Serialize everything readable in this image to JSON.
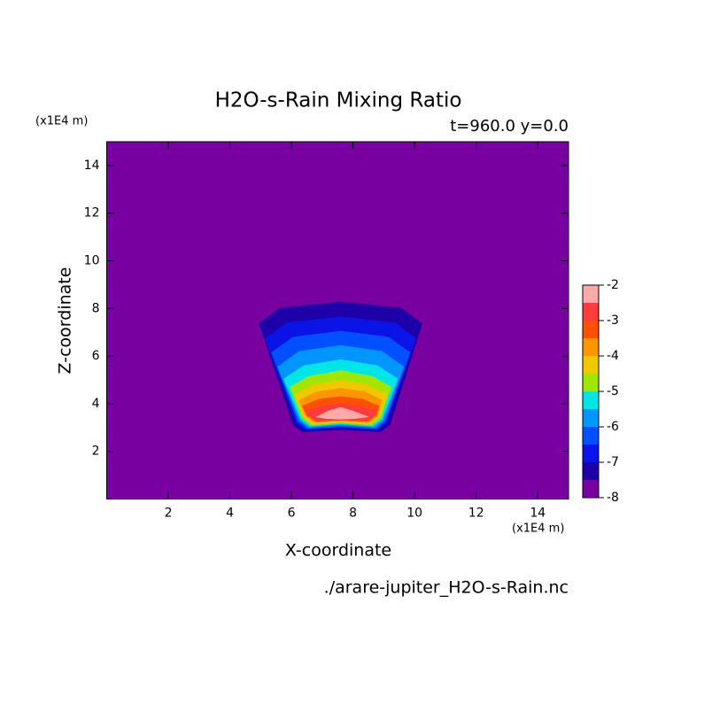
{
  "chart_data": {
    "type": "contour",
    "title": "H2O-s-Rain Mixing Ratio",
    "subtitle": "t=960.0 y=0.0",
    "x_label": "X-coordinate",
    "y_label": "Z-coordinate",
    "x_unit": "(x1E4 m)",
    "y_unit": "(x1E4 m)",
    "source": "./arare-jupiter_H2O-s-Rain.nc",
    "xlim": [
      0,
      15
    ],
    "ylim": [
      0,
      15
    ],
    "xticks": [
      2,
      4,
      6,
      8,
      10,
      12,
      14
    ],
    "yticks": [
      2,
      4,
      6,
      8,
      10,
      12,
      14
    ],
    "colorbar": {
      "levels": [
        -8,
        -7.5,
        -7,
        -6.5,
        -6,
        -5.5,
        -5,
        -4.5,
        -4,
        -3.5,
        -3,
        -2.5,
        -2
      ],
      "colors": [
        "#7800a0",
        "#1e00a8",
        "#0a14e6",
        "#0050ff",
        "#0096ff",
        "#00e6e6",
        "#a0e600",
        "#f0c800",
        "#ff9600",
        "#ff5000",
        "#ff3c3c",
        "#ffaaaa"
      ],
      "ticks": [
        -8,
        -7,
        -6,
        -5,
        -4,
        -3,
        -2
      ]
    },
    "contours": [
      {
        "level": -7.5,
        "x": [
          4.95,
          5.65,
          7.6,
          9.55,
          10.25,
          9.2,
          8.9,
          7.6,
          6.35,
          6.05
        ],
        "y": [
          7.38,
          8.03,
          8.28,
          8.03,
          7.38,
          3.12,
          2.82,
          2.92,
          2.82,
          3.12
        ]
      },
      {
        "level": -7,
        "x": [
          5.15,
          5.85,
          7.6,
          9.35,
          10.05,
          9.1,
          8.8,
          7.6,
          6.45,
          6.15
        ],
        "y": [
          6.75,
          7.4,
          7.65,
          7.4,
          6.75,
          3.2,
          2.9,
          3.0,
          2.9,
          3.2
        ]
      },
      {
        "level": -6.5,
        "x": [
          5.35,
          6.05,
          7.6,
          9.15,
          9.85,
          9.05,
          8.75,
          7.6,
          6.5,
          6.2
        ],
        "y": [
          6.15,
          6.8,
          7.05,
          6.8,
          6.15,
          3.25,
          2.95,
          3.05,
          2.95,
          3.25
        ]
      },
      {
        "level": -6,
        "x": [
          5.55,
          6.25,
          7.6,
          8.95,
          9.65,
          9.0,
          8.7,
          7.6,
          6.55,
          6.25
        ],
        "y": [
          5.55,
          6.2,
          6.45,
          6.2,
          5.55,
          3.3,
          3.0,
          3.1,
          3.0,
          3.3
        ]
      },
      {
        "level": -5.5,
        "x": [
          5.75,
          6.4,
          7.6,
          8.8,
          9.45,
          8.95,
          8.65,
          7.6,
          6.6,
          6.3
        ],
        "y": [
          5.05,
          5.6,
          5.85,
          5.6,
          5.05,
          3.35,
          3.05,
          3.15,
          3.05,
          3.35
        ]
      },
      {
        "level": -5,
        "x": [
          5.95,
          6.55,
          7.6,
          8.65,
          9.25,
          8.9,
          8.6,
          7.6,
          6.65,
          6.35
        ],
        "y": [
          4.7,
          5.15,
          5.4,
          5.15,
          4.7,
          3.4,
          3.1,
          3.2,
          3.1,
          3.4
        ]
      },
      {
        "level": -4.5,
        "x": [
          6.1,
          6.7,
          7.6,
          8.5,
          9.1,
          8.85,
          8.55,
          7.6,
          6.7,
          6.4
        ],
        "y": [
          4.4,
          4.8,
          5.0,
          4.8,
          4.4,
          3.45,
          3.15,
          3.25,
          3.15,
          3.45
        ]
      },
      {
        "level": -4,
        "x": [
          6.25,
          6.8,
          7.6,
          8.4,
          8.95,
          8.8,
          8.5,
          7.6,
          6.75,
          6.45
        ],
        "y": [
          4.15,
          4.5,
          4.65,
          4.5,
          4.15,
          3.5,
          3.2,
          3.3,
          3.2,
          3.5
        ]
      },
      {
        "level": -3.5,
        "x": [
          6.35,
          6.9,
          7.6,
          8.3,
          8.85,
          8.75,
          8.45,
          7.6,
          6.8,
          6.5
        ],
        "y": [
          3.9,
          4.2,
          4.3,
          4.2,
          3.9,
          3.5,
          3.25,
          3.3,
          3.25,
          3.5
        ]
      },
      {
        "level": -3,
        "x": [
          6.45,
          7.0,
          7.6,
          8.2,
          8.75,
          8.7,
          8.45,
          7.6,
          6.85,
          6.55
        ],
        "y": [
          3.7,
          3.93,
          4.0,
          3.93,
          3.7,
          3.5,
          3.3,
          3.35,
          3.3,
          3.5
        ]
      },
      {
        "level": -2.5,
        "x": [
          6.8,
          7.2,
          7.6,
          8.0,
          8.5,
          8.1,
          7.6,
          7.1
        ],
        "y": [
          3.45,
          3.7,
          3.85,
          3.7,
          3.45,
          3.38,
          3.35,
          3.38
        ]
      }
    ]
  }
}
